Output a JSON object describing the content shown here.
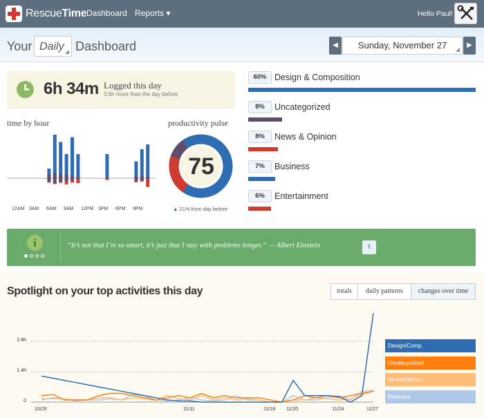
{
  "brand": {
    "part1": "Rescue",
    "part2": "Time"
  },
  "nav": {
    "dashboard": "Dashboard",
    "reports": "Reports",
    "reports_caret": "▾",
    "greeting": "Hello Paul!"
  },
  "header": {
    "your": "Your",
    "period": "Daily",
    "dashboard": "Dashboard",
    "date": "Sunday, November 27",
    "prev": "◀",
    "next": "▶"
  },
  "summary": {
    "hours": "6h 34m",
    "title": "Logged this day",
    "subtitle": "3.6h more than the day before"
  },
  "time_by_hour": {
    "label": "time by hour",
    "ticks": [
      "12AM",
      "3AM",
      "6AM",
      "9AM",
      "12PM",
      "3PM",
      "6PM",
      "9PM"
    ],
    "bars": [
      {
        "hour": 6,
        "blue": 0.2,
        "purple": 0.15,
        "red": 0.05
      },
      {
        "hour": 7,
        "blue": 0.9,
        "purple": 0.2,
        "red": 0.06
      },
      {
        "hour": 8,
        "blue": 0.75,
        "purple": 0.15,
        "red": 0.06
      },
      {
        "hour": 9,
        "blue": 0.5,
        "purple": 0.15,
        "red": 0.15
      },
      {
        "hour": 10,
        "blue": 0.85,
        "purple": 0.1,
        "red": 0.12
      },
      {
        "hour": 11,
        "blue": 0.5,
        "purple": 0.05,
        "red": 0.22
      },
      {
        "hour": 16,
        "blue": 0.5,
        "purple": 0.0,
        "red": 0.1
      },
      {
        "hour": 21,
        "blue": 0.35,
        "purple": 0.1,
        "red": 0.1
      },
      {
        "hour": 22,
        "blue": 0.6,
        "purple": 0.1,
        "red": 0.05
      },
      {
        "hour": 23,
        "blue": 0.7,
        "purple": 0.05,
        "red": 0.45
      }
    ]
  },
  "pulse": {
    "label": "productivity pulse",
    "value": "75",
    "note": "21% from day before",
    "note_arrow": "▲",
    "colors": {
      "productive": "#2f6db3",
      "neutral": "#5f4d6e",
      "distracting": "#d03a30"
    }
  },
  "categories": [
    {
      "pct": "60%",
      "name": "Design & Composition",
      "share": 1.0,
      "color": "#2f6db3"
    },
    {
      "pct": "8%",
      "name": "Uncategorized",
      "share": 0.15,
      "color": "#5f4d6e"
    },
    {
      "pct": "8%",
      "name": "News & Opinion",
      "share": 0.13,
      "color": "#d03a30"
    },
    {
      "pct": "7%",
      "name": "Business",
      "share": 0.12,
      "color": "#2f6db3"
    },
    {
      "pct": "6%",
      "name": "Entertainment",
      "share": 0.1,
      "color": "#d03a30"
    }
  ],
  "quote": {
    "icon": "i",
    "text": "“It’s not that I’m so smart, it’s just that I stay with problems longer.” — Albert Einstein",
    "twitter": "t"
  },
  "spotlight": {
    "title": "Spotlight on your top activities this day",
    "tabs": [
      "totals",
      "daily patterns",
      "changes over time"
    ],
    "active_tab": 2
  },
  "chart_data": {
    "type": "line",
    "x": [
      "10/29",
      "10/30",
      "10/31",
      "11/1",
      "11/2",
      "11/3",
      "11/4",
      "11/5",
      "11/6",
      "11/7",
      "11/8",
      "11/9",
      "11/10",
      "11/11",
      "11/12",
      "11/13",
      "11/14",
      "11/15",
      "11/16",
      "11/17",
      "11/18",
      "11/19",
      "11/20",
      "11/21",
      "11/22",
      "11/23",
      "11/24",
      "11/25",
      "11/26",
      "11/27"
    ],
    "xticks": [
      "10/29",
      "11/11",
      "11/18",
      "11/20",
      "11/24",
      "11/27"
    ],
    "yticks": [
      "0",
      "1.4h",
      "2.8h"
    ],
    "ylim": [
      0,
      4.2
    ],
    "grid": true,
    "legend_position": "right",
    "series": [
      {
        "name": "Design/Comp.",
        "color": "#2f6db3",
        "values": [
          1.2,
          1.1,
          1.0,
          0.9,
          0.8,
          0.7,
          0.6,
          0.5,
          0.4,
          0.3,
          0.2,
          0.1,
          0.05,
          0.05,
          0.0,
          0.0,
          0.0,
          0.0,
          0.0,
          0.0,
          0.0,
          0.0,
          1.0,
          0.3,
          0.3,
          0.3,
          0.25,
          0.0,
          0.3,
          4.1
        ]
      },
      {
        "name": "Uncategorized",
        "color": "#ff7f0e",
        "values": [
          0.3,
          0.35,
          0.1,
          0.1,
          0.1,
          0.3,
          0.4,
          0.4,
          0.3,
          0.2,
          0.1,
          0.2,
          0.3,
          0.2,
          0.4,
          0.2,
          0.3,
          0.2,
          0.2,
          0.2,
          0.1,
          0.0,
          0.1,
          0.3,
          0.2,
          0.3,
          0.2,
          0.3,
          0.4,
          0.5
        ]
      },
      {
        "name": "News/Opinion",
        "color": "#ffbb78",
        "values": [
          0.15,
          0.15,
          0.15,
          0.1,
          0.1,
          0.2,
          0.2,
          0.1,
          0.2,
          0.15,
          0.1,
          0.3,
          0.15,
          0.1,
          0.3,
          0.1,
          0.2,
          0.1,
          0.15,
          0.1,
          0.0,
          0.0,
          0.1,
          0.1,
          0.2,
          0.15,
          0.1,
          0.15,
          0.35,
          0.5
        ]
      },
      {
        "name": "Business",
        "color": "#aec7e8",
        "values": [
          0.1,
          0.2,
          0.15,
          0.05,
          0.1,
          0.1,
          0.15,
          0.1,
          0.35,
          0.3,
          0.1,
          0.05,
          0.1,
          0.2,
          0.1,
          0.05,
          0.1,
          0.3,
          0.1,
          0.1,
          0.0,
          0.0,
          0.3,
          0.1,
          0.1,
          0.2,
          0.3,
          0.1,
          0.5,
          0.55
        ]
      }
    ]
  }
}
